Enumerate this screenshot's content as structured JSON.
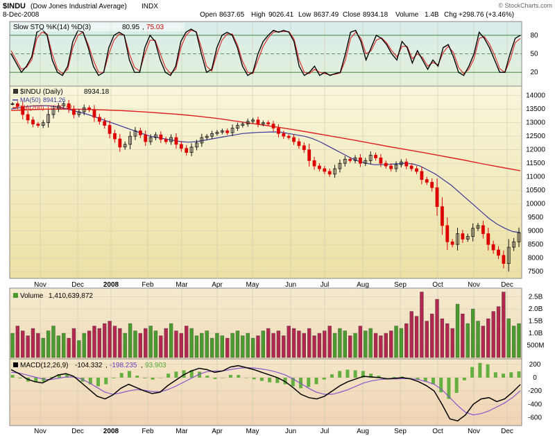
{
  "header": {
    "symbol": "$INDU",
    "name": "(Dow Jones Industrial Average)",
    "exchange": "INDX",
    "date": "8-Dec-2008",
    "open_label": "Open",
    "open": "8637.65",
    "high_label": "High",
    "high": "9026.41",
    "low_label": "Low",
    "low": "8637.49",
    "close_label": "Close",
    "close": "8934.18",
    "volume_label": "Volume",
    "volume": "1.4B",
    "chg_label": "Chg",
    "chg": "+298.76 (+3.46%)",
    "copyright": "© StockCharts.com"
  },
  "colors": {
    "up": "#111111",
    "down": "#dd0000",
    "ma50": "#3a3a9a",
    "ma200": "#e02020",
    "vol_up": "#4a9a30",
    "vol_down": "#b02850",
    "macd": "#000000",
    "macd_signal": "#8855cc",
    "macd_hist": "#55aa33"
  },
  "x_axis_labels": [
    "Nov",
    "Dec",
    "2008",
    "Feb",
    "Mar",
    "Apr",
    "May",
    "Jun",
    "Jul",
    "Aug",
    "Sep",
    "Oct",
    "Nov",
    "Dec"
  ],
  "chart_data": [
    {
      "type": "line",
      "panel": "stochastic",
      "legend": {
        "title": "Slow STO %K(14) %D(3)",
        "k": "80.95",
        "d": "75.03"
      },
      "ylim": [
        0,
        100
      ],
      "yticks": [
        "20",
        "50",
        "80"
      ],
      "k_values": [
        50,
        35,
        20,
        30,
        45,
        85,
        90,
        80,
        40,
        20,
        15,
        30,
        70,
        88,
        85,
        60,
        30,
        15,
        20,
        60,
        80,
        85,
        80,
        40,
        20,
        20,
        60,
        80,
        70,
        40,
        20,
        15,
        30,
        70,
        85,
        90,
        85,
        50,
        20,
        25,
        60,
        80,
        85,
        80,
        60,
        30,
        15,
        20,
        50,
        70,
        80,
        88,
        85,
        88,
        85,
        70,
        30,
        15,
        20,
        30,
        15,
        20,
        15,
        18,
        20,
        50,
        85,
        88,
        70,
        40,
        60,
        80,
        75,
        65,
        50,
        40,
        70,
        60,
        35,
        55,
        40,
        25,
        40,
        30,
        60,
        65,
        45,
        20,
        15,
        30,
        50,
        85,
        75,
        60,
        40,
        20,
        20,
        50,
        75,
        80
      ],
      "d_values": [
        55,
        40,
        25,
        28,
        40,
        75,
        85,
        82,
        50,
        25,
        18,
        25,
        60,
        80,
        85,
        65,
        40,
        20,
        20,
        50,
        72,
        82,
        80,
        50,
        28,
        22,
        50,
        72,
        72,
        50,
        28,
        18,
        25,
        60,
        80,
        88,
        86,
        60,
        30,
        22,
        50,
        72,
        82,
        82,
        65,
        38,
        20,
        18,
        40,
        62,
        76,
        85,
        86,
        86,
        86,
        74,
        40,
        20,
        18,
        25,
        20,
        18,
        16,
        17,
        19,
        40,
        75,
        85,
        75,
        50,
        55,
        72,
        76,
        68,
        55,
        45,
        62,
        62,
        42,
        50,
        44,
        30,
        36,
        32,
        52,
        62,
        52,
        28,
        18,
        25,
        42,
        75,
        78,
        66,
        48,
        26,
        20,
        40,
        68,
        75
      ]
    },
    {
      "type": "candlestick",
      "panel": "price",
      "legend": {
        "title": "$INDU (Daily)",
        "value": "8934.18",
        "ma50_label": "MA(50)",
        "ma50_value": "8941.26",
        "ma200_label": "MA(200)",
        "ma200_value": "11226.42"
      },
      "ylim": [
        7300,
        14300
      ],
      "yticks": [
        "7500",
        "8000",
        "8500",
        "9000",
        "9500",
        "10000",
        "10500",
        "11000",
        "11500",
        "12000",
        "12500",
        "13000",
        "13500",
        "14000"
      ],
      "close": [
        13700,
        13600,
        13300,
        13100,
        12950,
        12900,
        13000,
        13300,
        13500,
        13620,
        13700,
        13500,
        13300,
        13400,
        13550,
        13480,
        13200,
        13050,
        12900,
        12600,
        12400,
        12100,
        12200,
        12500,
        12700,
        12550,
        12300,
        12450,
        12550,
        12380,
        12300,
        12450,
        12200,
        12050,
        11900,
        12100,
        12250,
        12450,
        12500,
        12600,
        12650,
        12700,
        12630,
        12800,
        12900,
        12950,
        13050,
        13100,
        12950,
        13000,
        12950,
        12800,
        12600,
        12500,
        12450,
        12300,
        12150,
        12000,
        11600,
        11400,
        11300,
        11200,
        11100,
        11300,
        11500,
        11650,
        11600,
        11700,
        11500,
        11600,
        11800,
        11700,
        11500,
        11400,
        11300,
        11450,
        11550,
        11400,
        11300,
        11200,
        10900,
        10800,
        10600,
        9900,
        9200,
        8600,
        8500,
        8900,
        8700,
        8800,
        9100,
        9200,
        8900,
        8500,
        8300,
        8100,
        7800,
        8400,
        8600,
        8934
      ],
      "ma50": [
        13500,
        13550,
        13600,
        13620,
        13630,
        13620,
        13580,
        13520,
        13450,
        13380,
        13300,
        13200,
        13100,
        13000,
        12900,
        12800,
        12700,
        12600,
        12500,
        12450,
        12400,
        12350,
        12300,
        12280,
        12300,
        12350,
        12400,
        12450,
        12500,
        12550,
        12600,
        12620,
        12640,
        12650,
        12660,
        12650,
        12600,
        12550,
        12500,
        12420,
        12300,
        12150,
        12000,
        11850,
        11700,
        11580,
        11500,
        11450,
        11450,
        11460,
        11480,
        11500,
        11480,
        11400,
        11250,
        11100,
        10900,
        10700,
        10450,
        10200,
        9950,
        9700,
        9450,
        9250,
        9100,
        8980,
        8941
      ],
      "ma200": [
        13450,
        13480,
        13500,
        13500,
        13490,
        13470,
        13440,
        13400,
        13350,
        13300,
        13230,
        13150,
        13050,
        12950,
        12850,
        12740,
        12620,
        12500,
        12380,
        12250,
        12120,
        12000,
        11880,
        11750,
        11620,
        11480,
        11350,
        11226
      ]
    },
    {
      "type": "bar",
      "panel": "volume",
      "legend": {
        "title": "Volume",
        "value": "1,410,639,872"
      },
      "ylim": [
        0,
        2.8
      ],
      "yunit": "B",
      "yticks": [
        "500M",
        "1.0B",
        "1.5B",
        "2.0B",
        "2.5B"
      ],
      "values": [
        1.0,
        1.3,
        1.1,
        0.9,
        1.2,
        1.0,
        0.8,
        1.1,
        1.3,
        0.9,
        1.0,
        0.8,
        1.2,
        0.7,
        1.0,
        1.1,
        1.3,
        1.2,
        1.4,
        1.5,
        1.3,
        1.2,
        1.0,
        1.4,
        1.1,
        1.0,
        1.2,
        1.3,
        1.1,
        0.9,
        1.2,
        1.4,
        1.1,
        1.0,
        1.3,
        1.2,
        0.9,
        1.0,
        1.1,
        0.8,
        1.0,
        0.9,
        0.8,
        1.0,
        1.1,
        0.9,
        1.0,
        0.8,
        0.9,
        1.1,
        1.2,
        1.0,
        1.1,
        0.9,
        1.3,
        1.2,
        1.1,
        1.0,
        1.2,
        0.9,
        1.0,
        1.1,
        1.3,
        1.0,
        1.2,
        1.1,
        0.9,
        1.0,
        1.3,
        1.1,
        1.2,
        1.0,
        0.9,
        1.0,
        1.1,
        1.3,
        1.2,
        1.4,
        1.9,
        1.7,
        2.7,
        1.5,
        1.8,
        2.4,
        1.6,
        1.4,
        1.2,
        2.2,
        1.8,
        1.4,
        2.0,
        1.5,
        1.3,
        1.6,
        1.9,
        2.1,
        2.7,
        1.6,
        1.3,
        1.4
      ]
    },
    {
      "type": "line",
      "panel": "macd",
      "legend": {
        "title": "MACD(12,26,9)",
        "macd": "-104.332",
        "signal": "-198.235",
        "histogram": "93.903"
      },
      "ylim": [
        -700,
        260
      ],
      "yticks": [
        "-600",
        "-400",
        "-200",
        "0",
        "200"
      ],
      "macd": [
        120,
        60,
        -20,
        -60,
        -80,
        -20,
        40,
        60,
        20,
        -80,
        -180,
        -280,
        -320,
        -260,
        -160,
        -100,
        -150,
        -200,
        -240,
        -220,
        -120,
        -40,
        40,
        100,
        140,
        120,
        80,
        100,
        160,
        180,
        150,
        120,
        80,
        40,
        0,
        -60,
        -150,
        -250,
        -300,
        -320,
        -280,
        -200,
        -120,
        -60,
        -20,
        20,
        10,
        0,
        -20,
        -10,
        0,
        -20,
        -60,
        -120,
        -200,
        -400,
        -620,
        -650,
        -560,
        -400,
        -320,
        -300,
        -360,
        -320,
        -220,
        -104
      ],
      "signal": [
        80,
        70,
        40,
        10,
        -20,
        -30,
        -10,
        10,
        10,
        -20,
        -80,
        -150,
        -220,
        -250,
        -230,
        -200,
        -180,
        -190,
        -210,
        -215,
        -180,
        -130,
        -70,
        -10,
        50,
        90,
        100,
        100,
        120,
        140,
        150,
        145,
        130,
        110,
        80,
        40,
        -20,
        -90,
        -160,
        -220,
        -250,
        -250,
        -220,
        -180,
        -130,
        -80,
        -50,
        -30,
        -20,
        -20,
        -15,
        -15,
        -30,
        -60,
        -100,
        -180,
        -300,
        -420,
        -520,
        -560,
        -540,
        -500,
        -440,
        -380,
        -300,
        -198
      ]
    }
  ]
}
